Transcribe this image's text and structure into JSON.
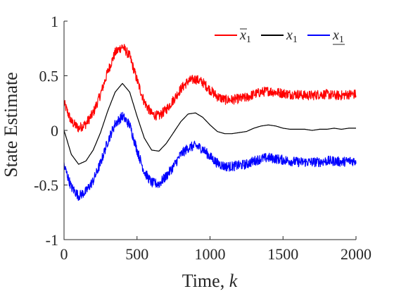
{
  "chart_data": {
    "type": "line",
    "title": "",
    "xlabel": "Time, ",
    "xlabel_var": "k",
    "ylabel": "State Estimate",
    "xlim": [
      0,
      2000
    ],
    "ylim": [
      -1,
      1
    ],
    "xticks": [
      0,
      500,
      1000,
      1500,
      2000
    ],
    "xtick_labels": [
      "0",
      "500",
      "1000",
      "1500",
      "2000"
    ],
    "yticks": [
      -1,
      -0.5,
      0,
      0.5,
      1
    ],
    "ytick_labels": [
      "-1",
      "-0.5",
      "0",
      "0.5",
      "1"
    ],
    "grid": false,
    "legend_position": "top-right",
    "x": [
      0,
      50,
      100,
      150,
      200,
      250,
      300,
      350,
      400,
      450,
      500,
      550,
      600,
      650,
      700,
      750,
      800,
      850,
      900,
      950,
      1000,
      1050,
      1100,
      1150,
      1200,
      1250,
      1300,
      1350,
      1400,
      1450,
      1500,
      1550,
      1600,
      1650,
      1700,
      1750,
      1800,
      1850,
      1900,
      1950,
      2000
    ],
    "series": [
      {
        "name": "x̄",
        "name_sub": "1",
        "overline": true,
        "underline": false,
        "color": "#ff0000",
        "values": [
          0.25,
          0.08,
          0.02,
          0.06,
          0.16,
          0.33,
          0.54,
          0.71,
          0.77,
          0.68,
          0.46,
          0.26,
          0.15,
          0.13,
          0.19,
          0.28,
          0.38,
          0.45,
          0.47,
          0.44,
          0.37,
          0.31,
          0.28,
          0.28,
          0.29,
          0.3,
          0.33,
          0.35,
          0.36,
          0.35,
          0.34,
          0.33,
          0.33,
          0.32,
          0.32,
          0.33,
          0.33,
          0.32,
          0.32,
          0.33,
          0.33
        ]
      },
      {
        "name": "x",
        "name_sub": "1",
        "overline": false,
        "underline": false,
        "color": "#000000",
        "values": [
          0.0,
          -0.22,
          -0.31,
          -0.28,
          -0.18,
          -0.02,
          0.18,
          0.35,
          0.43,
          0.35,
          0.13,
          -0.07,
          -0.18,
          -0.19,
          -0.12,
          -0.02,
          0.08,
          0.15,
          0.16,
          0.12,
          0.05,
          -0.01,
          -0.03,
          -0.03,
          -0.02,
          -0.01,
          0.02,
          0.04,
          0.05,
          0.04,
          0.02,
          0.01,
          0.01,
          0.01,
          0.0,
          0.01,
          0.01,
          0.02,
          0.01,
          0.02,
          0.02
        ]
      },
      {
        "name": "x",
        "name_sub": "1",
        "overline": false,
        "underline": true,
        "color": "#0000ff",
        "values": [
          -0.32,
          -0.52,
          -0.6,
          -0.56,
          -0.46,
          -0.3,
          -0.1,
          0.06,
          0.13,
          0.05,
          -0.18,
          -0.38,
          -0.48,
          -0.49,
          -0.42,
          -0.33,
          -0.22,
          -0.16,
          -0.14,
          -0.17,
          -0.24,
          -0.3,
          -0.33,
          -0.33,
          -0.32,
          -0.31,
          -0.28,
          -0.26,
          -0.25,
          -0.26,
          -0.27,
          -0.28,
          -0.29,
          -0.29,
          -0.29,
          -0.29,
          -0.28,
          -0.28,
          -0.29,
          -0.28,
          -0.28
        ]
      }
    ]
  }
}
